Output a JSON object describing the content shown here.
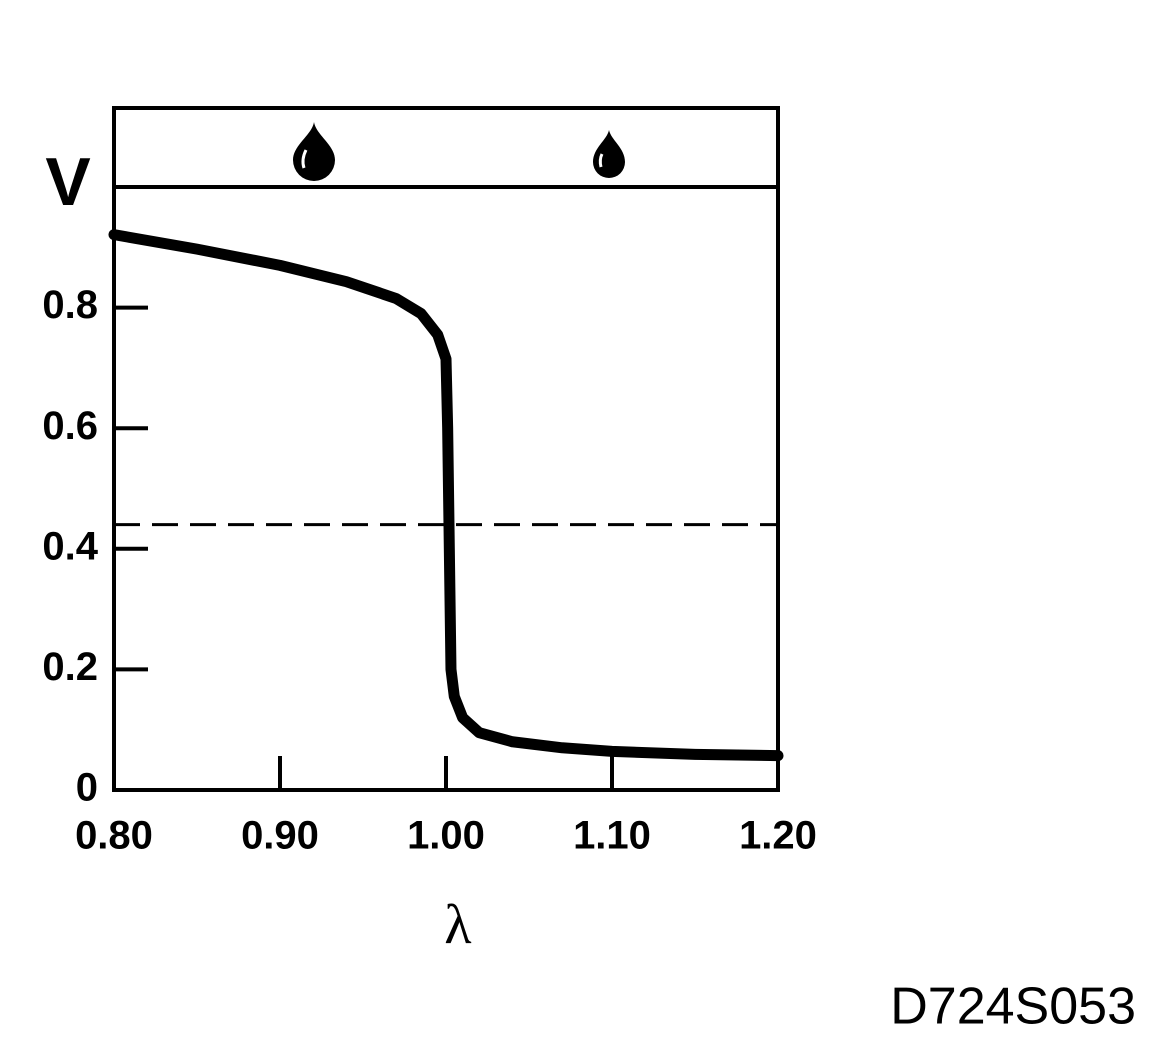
{
  "chart_data": {
    "type": "line",
    "y_label": "V",
    "x_label": "λ",
    "annotation": "D724S053",
    "x": [
      0.8,
      0.85,
      0.9,
      0.94,
      0.97,
      0.985,
      0.995,
      1.0,
      1.001,
      1.002,
      1.003,
      1.005,
      1.01,
      1.02,
      1.04,
      1.07,
      1.1,
      1.15,
      1.2
    ],
    "series": [
      {
        "color": "#000000",
        "values": [
          0.921,
          0.897,
          0.87,
          0.843,
          0.815,
          0.79,
          0.755,
          0.715,
          0.6,
          0.4,
          0.2,
          0.155,
          0.12,
          0.095,
          0.08,
          0.07,
          0.064,
          0.059,
          0.057
        ]
      }
    ],
    "reference_line": 0.44,
    "xlim": [
      0.8,
      1.2
    ],
    "ylim": [
      0,
      1.0
    ],
    "xticks": [
      {
        "value": 0.8,
        "label": "0.80"
      },
      {
        "value": 0.9,
        "label": "0.90"
      },
      {
        "value": 1.0,
        "label": "1.00"
      },
      {
        "value": 1.1,
        "label": "1.10"
      },
      {
        "value": 1.2,
        "label": "1.20"
      }
    ],
    "yticks": [
      0,
      0.2,
      0.4,
      0.6,
      0.8
    ]
  }
}
